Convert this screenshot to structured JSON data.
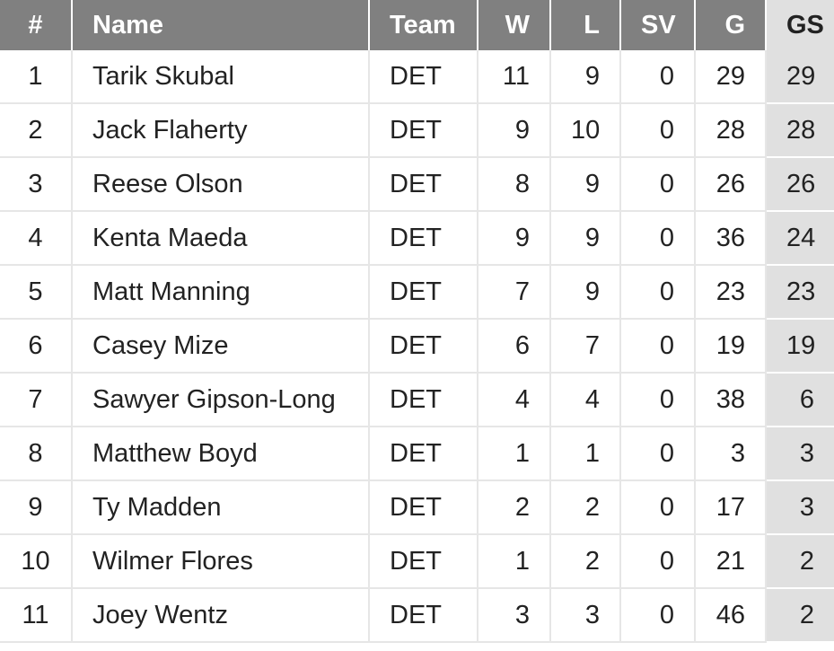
{
  "table": {
    "headers": {
      "rank": "#",
      "name": "Name",
      "team": "Team",
      "w": "W",
      "l": "L",
      "sv": "SV",
      "g": "G",
      "gs": "GS"
    },
    "sorted_column": "GS",
    "colors": {
      "header_bg": "#808080",
      "header_text": "#ffffff",
      "sorted_column_bg": "#e0e0e0",
      "grid_line": "#e6e6e6"
    },
    "rows": [
      {
        "rank": "1",
        "name": "Tarik Skubal",
        "team": "DET",
        "w": "11",
        "l": "9",
        "sv": "0",
        "g": "29",
        "gs": "29"
      },
      {
        "rank": "2",
        "name": "Jack Flaherty",
        "team": "DET",
        "w": "9",
        "l": "10",
        "sv": "0",
        "g": "28",
        "gs": "28"
      },
      {
        "rank": "3",
        "name": "Reese Olson",
        "team": "DET",
        "w": "8",
        "l": "9",
        "sv": "0",
        "g": "26",
        "gs": "26"
      },
      {
        "rank": "4",
        "name": "Kenta Maeda",
        "team": "DET",
        "w": "9",
        "l": "9",
        "sv": "0",
        "g": "36",
        "gs": "24"
      },
      {
        "rank": "5",
        "name": "Matt Manning",
        "team": "DET",
        "w": "7",
        "l": "9",
        "sv": "0",
        "g": "23",
        "gs": "23"
      },
      {
        "rank": "6",
        "name": "Casey Mize",
        "team": "DET",
        "w": "6",
        "l": "7",
        "sv": "0",
        "g": "19",
        "gs": "19"
      },
      {
        "rank": "7",
        "name": "Sawyer Gipson-Long",
        "team": "DET",
        "w": "4",
        "l": "4",
        "sv": "0",
        "g": "38",
        "gs": "6"
      },
      {
        "rank": "8",
        "name": "Matthew Boyd",
        "team": "DET",
        "w": "1",
        "l": "1",
        "sv": "0",
        "g": "3",
        "gs": "3"
      },
      {
        "rank": "9",
        "name": "Ty Madden",
        "team": "DET",
        "w": "2",
        "l": "2",
        "sv": "0",
        "g": "17",
        "gs": "3"
      },
      {
        "rank": "10",
        "name": "Wilmer Flores",
        "team": "DET",
        "w": "1",
        "l": "2",
        "sv": "0",
        "g": "21",
        "gs": "2"
      },
      {
        "rank": "11",
        "name": "Joey Wentz",
        "team": "DET",
        "w": "3",
        "l": "3",
        "sv": "0",
        "g": "46",
        "gs": "2"
      }
    ]
  }
}
